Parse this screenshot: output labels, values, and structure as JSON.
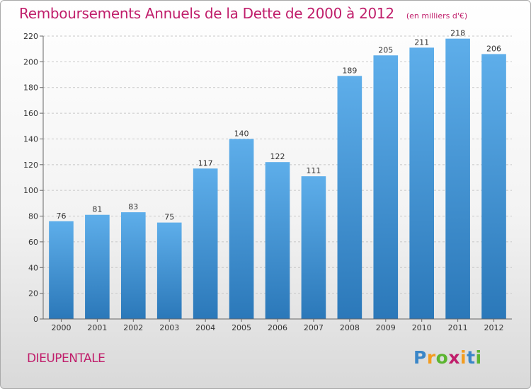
{
  "chart_data": {
    "type": "bar",
    "title": "Remboursements Annuels de la Dette de 2000 à 2012",
    "subtitle": "(en milliers d'€)",
    "categories": [
      "2000",
      "2001",
      "2002",
      "2003",
      "2004",
      "2005",
      "2006",
      "2007",
      "2008",
      "2009",
      "2010",
      "2011",
      "2012"
    ],
    "values": [
      76,
      81,
      83,
      75,
      117,
      140,
      122,
      111,
      189,
      205,
      211,
      218,
      206
    ],
    "ylim": [
      0,
      220
    ],
    "yticks": [
      0,
      20,
      40,
      60,
      80,
      100,
      120,
      140,
      160,
      180,
      200,
      220
    ],
    "xlabel": "",
    "ylabel": "",
    "grid": true
  },
  "footer": {
    "location": "DIEUPENTALE",
    "logo_letters": [
      "P",
      "r",
      "o",
      "x",
      "i",
      "t",
      "i"
    ]
  },
  "colors": {
    "title": "#c01e6b",
    "bar_top": "#5eaeea",
    "bar_bottom": "#2b78b9",
    "logo": [
      "#3a86c8",
      "#f39c1f",
      "#5cb531",
      "#c01e6b",
      "#f39c1f",
      "#3a86c8",
      "#5cb531"
    ]
  }
}
